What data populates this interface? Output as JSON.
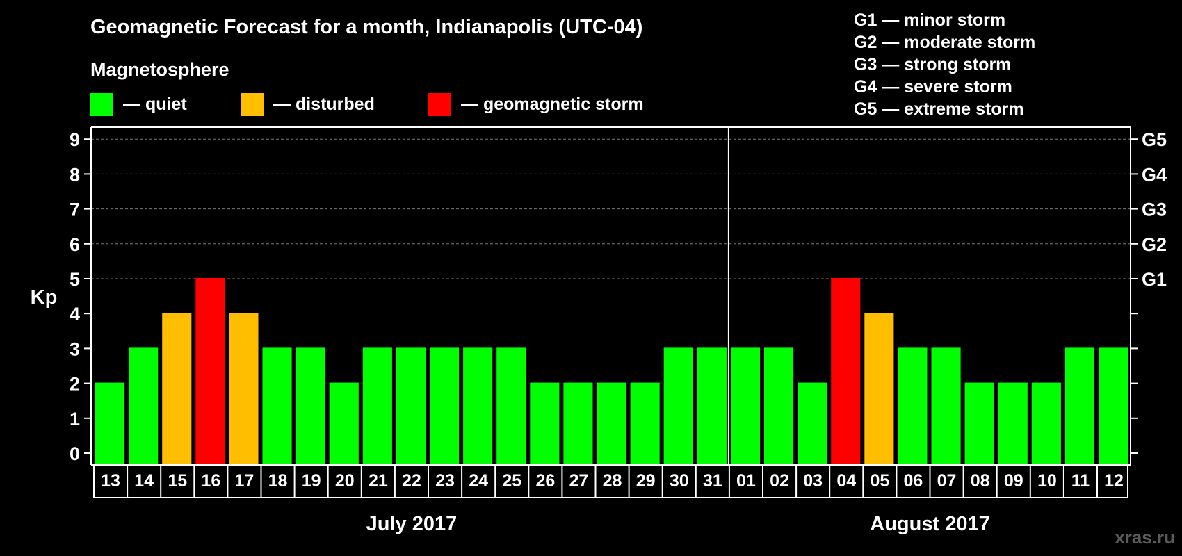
{
  "chart_data": {
    "type": "bar",
    "title": "Geomagnetic Forecast for a month, Indianapolis (UTC-04)",
    "section_label": "Magnetosphere",
    "ylabel": "Kp",
    "ylim": [
      0,
      9
    ],
    "yticks": [
      "0",
      "1",
      "2",
      "3",
      "4",
      "5",
      "6",
      "7",
      "8",
      "9"
    ],
    "grid": "dashed horizontal at Kp 5-9",
    "legend": [
      {
        "label": "— quiet",
        "color": "#00ff00"
      },
      {
        "label": "— disturbed",
        "color": "#ffbf00"
      },
      {
        "label": "— geomagnetic storm",
        "color": "#ff0000"
      }
    ],
    "storm_scale": [
      {
        "code": "G1",
        "text": "G1 — minor storm",
        "kp": 5
      },
      {
        "code": "G2",
        "text": "G2 — moderate storm",
        "kp": 6
      },
      {
        "code": "G3",
        "text": "G3 — strong storm",
        "kp": 7
      },
      {
        "code": "G4",
        "text": "G4 — severe storm",
        "kp": 8
      },
      {
        "code": "G5",
        "text": "G5 — extreme storm",
        "kp": 9
      }
    ],
    "months": [
      {
        "label": "July 2017",
        "days": [
          "13",
          "14",
          "15",
          "16",
          "17",
          "18",
          "19",
          "20",
          "21",
          "22",
          "23",
          "24",
          "25",
          "26",
          "27",
          "28",
          "29",
          "30",
          "31"
        ]
      },
      {
        "label": "August 2017",
        "days": [
          "01",
          "02",
          "03",
          "04",
          "05",
          "06",
          "07",
          "08",
          "09",
          "10",
          "11",
          "12"
        ]
      }
    ],
    "values": [
      2,
      3,
      4,
      5,
      4,
      3,
      3,
      2,
      3,
      3,
      3,
      3,
      3,
      2,
      2,
      2,
      2,
      3,
      3,
      3,
      3,
      2,
      5,
      4,
      3,
      3,
      2,
      2,
      2,
      3,
      3
    ],
    "colors": {
      "quiet": "#00ff00",
      "disturbed": "#ffbf00",
      "storm": "#ff0000"
    },
    "watermark": "xras.ru"
  }
}
